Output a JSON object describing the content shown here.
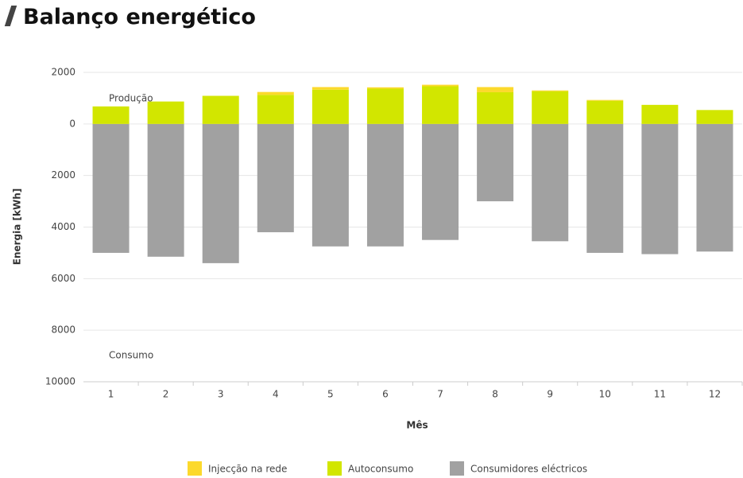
{
  "chart_data": {
    "type": "bar",
    "title": "Balanço energético",
    "categories": [
      "1",
      "2",
      "3",
      "4",
      "5",
      "6",
      "7",
      "8",
      "9",
      "10",
      "11",
      "12"
    ],
    "series": [
      {
        "name": "Injecção na rede",
        "color": "#fcd92c",
        "values": [
          0,
          0,
          0,
          110,
          100,
          50,
          60,
          200,
          30,
          30,
          0,
          0
        ]
      },
      {
        "name": "Autoconsumo",
        "color": "#d2e600",
        "values": [
          680,
          870,
          1090,
          1130,
          1330,
          1370,
          1460,
          1230,
          1270,
          900,
          740,
          540
        ]
      },
      {
        "name": "Consumidores eléctricos",
        "color": "#a1a1a1",
        "values": [
          -5000,
          -5150,
          -5400,
          -4200,
          -4750,
          -4750,
          -4500,
          -3000,
          -4550,
          -5000,
          -5050,
          -4950
        ]
      }
    ],
    "ylim": [
      -10000,
      2000
    ],
    "yticks": [
      2000,
      0,
      {
        "value": -2000,
        "label": "2000"
      },
      {
        "value": -4000,
        "label": "4000"
      },
      {
        "value": -6000,
        "label": "6000"
      },
      {
        "value": -8000,
        "label": "8000"
      },
      {
        "value": -10000,
        "label": "10000"
      }
    ],
    "ylabel": "Energia [kWh]",
    "xlabel": "Mês",
    "annotations": [
      "Produção",
      "Consumo"
    ],
    "grid": true
  }
}
